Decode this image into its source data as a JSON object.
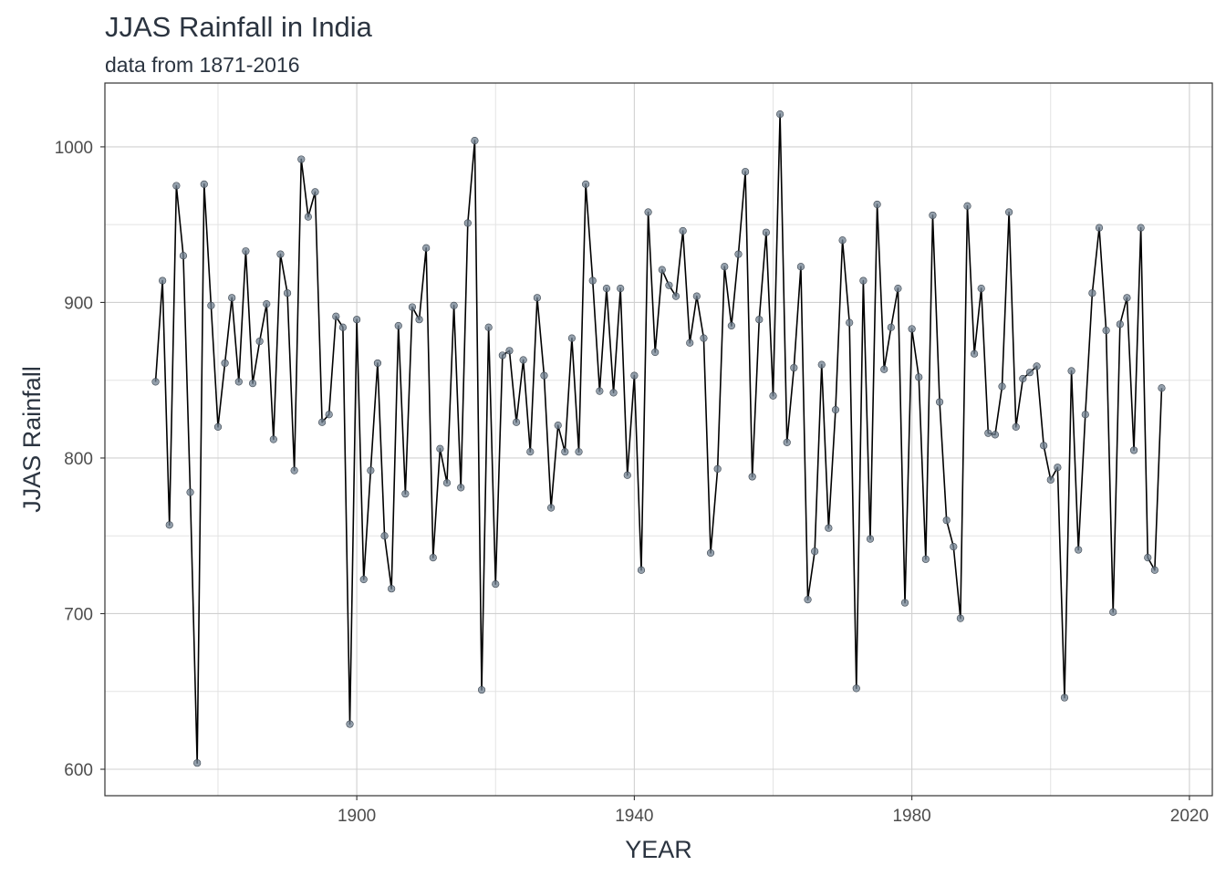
{
  "chart_data": {
    "type": "line",
    "title": "JJAS Rainfall in India",
    "subtitle": "data from 1871-2016",
    "xlabel": "YEAR",
    "ylabel": "JJAS Rainfall",
    "xlim": [
      1863.7,
      2023.3
    ],
    "ylim": [
      583,
      1041
    ],
    "x_ticks": [
      1900,
      1940,
      1980,
      2020
    ],
    "y_ticks": [
      600,
      700,
      800,
      900,
      1000
    ],
    "x_tick_labels": [
      "1900",
      "1940",
      "1980",
      "2020"
    ],
    "y_tick_labels": [
      "600",
      "700",
      "800",
      "900",
      "1000"
    ],
    "grid": true,
    "line_color": "#000000",
    "point_color": "#708090",
    "x": [
      1871,
      1872,
      1873,
      1874,
      1875,
      1876,
      1877,
      1878,
      1879,
      1880,
      1881,
      1882,
      1883,
      1884,
      1885,
      1886,
      1887,
      1888,
      1889,
      1890,
      1891,
      1892,
      1893,
      1894,
      1895,
      1896,
      1897,
      1898,
      1899,
      1900,
      1901,
      1902,
      1903,
      1904,
      1905,
      1906,
      1907,
      1908,
      1909,
      1910,
      1911,
      1912,
      1913,
      1914,
      1915,
      1916,
      1917,
      1918,
      1919,
      1920,
      1921,
      1922,
      1923,
      1924,
      1925,
      1926,
      1927,
      1928,
      1929,
      1930,
      1931,
      1932,
      1933,
      1934,
      1935,
      1936,
      1937,
      1938,
      1939,
      1940,
      1941,
      1942,
      1943,
      1944,
      1945,
      1946,
      1947,
      1948,
      1949,
      1950,
      1951,
      1952,
      1953,
      1954,
      1955,
      1956,
      1957,
      1958,
      1959,
      1960,
      1961,
      1962,
      1963,
      1964,
      1965,
      1966,
      1967,
      1968,
      1969,
      1970,
      1971,
      1972,
      1973,
      1974,
      1975,
      1976,
      1977,
      1978,
      1979,
      1980,
      1981,
      1982,
      1983,
      1984,
      1985,
      1986,
      1987,
      1988,
      1989,
      1990,
      1991,
      1992,
      1993,
      1994,
      1995,
      1996,
      1997,
      1998,
      1999,
      2000,
      2001,
      2002,
      2003,
      2004,
      2005,
      2006,
      2007,
      2008,
      2009,
      2010,
      2011,
      2012,
      2013,
      2014,
      2015,
      2016
    ],
    "y": [
      849,
      914,
      757,
      975,
      930,
      778,
      604,
      976,
      898,
      820,
      861,
      903,
      849,
      933,
      848,
      875,
      899,
      812,
      931,
      906,
      792,
      992,
      955,
      971,
      823,
      828,
      891,
      884,
      629,
      889,
      722,
      792,
      861,
      750,
      716,
      885,
      777,
      897,
      889,
      935,
      736,
      806,
      784,
      898,
      781,
      951,
      1004,
      651,
      884,
      719,
      866,
      869,
      823,
      863,
      804,
      903,
      853,
      768,
      821,
      804,
      877,
      804,
      976,
      914,
      843,
      909,
      842,
      909,
      789,
      853,
      728,
      958,
      868,
      921,
      911,
      904,
      946,
      874,
      904,
      877,
      739,
      793,
      923,
      885,
      931,
      984,
      788,
      889,
      945,
      840,
      1021,
      810,
      858,
      923,
      709,
      740,
      860,
      755,
      831,
      940,
      887,
      652,
      914,
      748,
      963,
      857,
      884,
      909,
      707,
      883,
      852,
      735,
      956,
      836,
      760,
      743,
      697,
      962,
      867,
      909,
      816,
      815,
      846,
      958,
      820,
      851,
      855,
      859,
      808,
      786,
      794,
      646,
      856,
      741,
      828,
      906,
      948,
      882,
      701,
      886,
      903,
      805,
      948,
      736,
      728,
      845
    ]
  }
}
